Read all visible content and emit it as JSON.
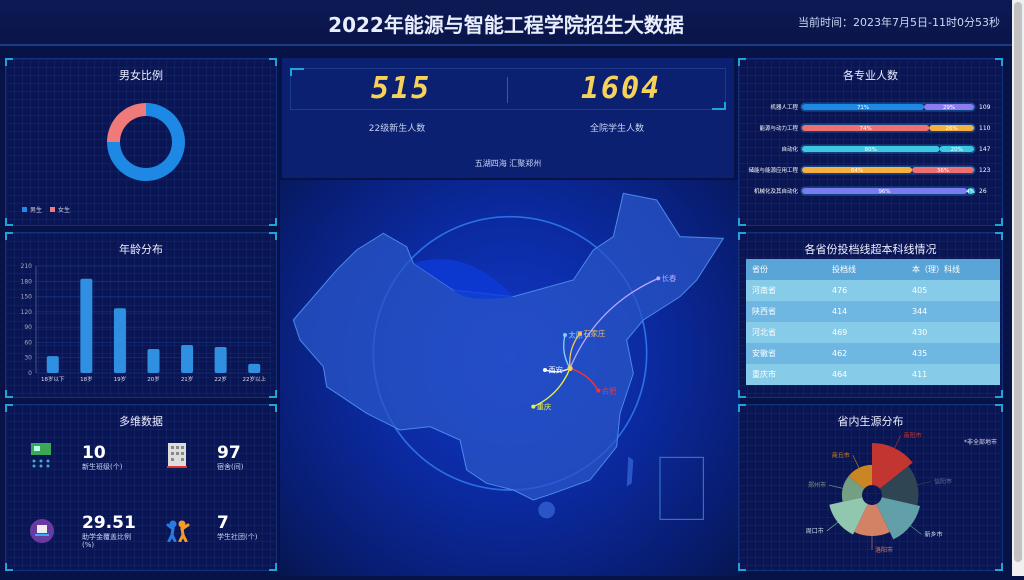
{
  "header": {
    "title": "2022年能源与智能工程学院招生大数据",
    "clock": "当前时间：2023年7月5日-11时0分53秒"
  },
  "gender": {
    "title": "男女比例",
    "legend": [
      "男生",
      "女生"
    ],
    "chart_data": {
      "type": "pie",
      "categories": [
        "男生",
        "女生"
      ],
      "values": [
        75,
        25
      ],
      "colors": [
        "#1e88e5",
        "#f07a7a"
      ],
      "legend": "bottom-left"
    }
  },
  "age": {
    "title": "年龄分布",
    "chart_data": {
      "type": "bar",
      "categories": [
        "18岁以下",
        "18岁",
        "19岁",
        "20岁",
        "21岁",
        "22岁",
        "22岁以上"
      ],
      "values": [
        33,
        185,
        127,
        47,
        55,
        51,
        18
      ],
      "ylim": [
        0,
        210
      ],
      "yticks": [
        0,
        30,
        60,
        90,
        120,
        150,
        180,
        210
      ],
      "color": "#2f8fe0"
    }
  },
  "multi": {
    "title": "多维数据",
    "items": [
      {
        "value": "10",
        "label": "新生班级(个)",
        "icon": "circuit-board-icon"
      },
      {
        "value": "97",
        "label": "宿舍(间)",
        "icon": "building-icon"
      },
      {
        "value": "29.51",
        "label": "助学金覆盖比例(%)",
        "icon": "laptop-icon"
      },
      {
        "value": "7",
        "label": "学生社团(个)",
        "icon": "people-cheering-icon"
      }
    ]
  },
  "center": {
    "freshmen": "515",
    "freshmen_label": "22级新生人数",
    "total": "1604",
    "total_label": "全院学生人数",
    "slogan": "五湖四海 汇聚郑州",
    "routes": [
      "长春",
      "太原",
      "石家庄",
      "西安",
      "合肥",
      "重庆"
    ],
    "route_colors": [
      "#b9a8ff",
      "#7fd0ff",
      "#f0c060",
      "#ffffff",
      "#ff3030",
      "#e8f040"
    ]
  },
  "majors": {
    "title": "各专业人数",
    "chart_data": {
      "type": "bar",
      "orientation": "horizontal-stacked",
      "rows": [
        {
          "name": "机器人工程",
          "p1": 71,
          "p2": 29,
          "total": 109,
          "colors": [
            "#1e88e5",
            "#8c7cf0"
          ]
        },
        {
          "name": "能源与动力工程",
          "p1": 74,
          "p2": 26,
          "total": 110,
          "colors": [
            "#f07070",
            "#f5b041"
          ]
        },
        {
          "name": "自动化",
          "p1": 80,
          "p2": 20,
          "total": 147,
          "colors": [
            "#3ec8e0",
            "#3ec8e0"
          ]
        },
        {
          "name": "储能与能源应用工程",
          "p1": 64,
          "p2": 36,
          "total": 123,
          "colors": [
            "#f5b041",
            "#f07070"
          ]
        },
        {
          "name": "机械化及其自动化",
          "p1": 96,
          "p2": 4,
          "total": 26,
          "colors": [
            "#7b7bf0",
            "#3ec8e0"
          ]
        }
      ]
    }
  },
  "scores": {
    "title": "各省份投档线超本科线情况",
    "headers": [
      "省份",
      "投档线",
      "本（理）科线"
    ],
    "rows": [
      [
        "河南省",
        "476",
        "405"
      ],
      [
        "陕西省",
        "414",
        "344"
      ],
      [
        "河北省",
        "469",
        "430"
      ],
      [
        "安徽省",
        "462",
        "435"
      ],
      [
        "重庆市",
        "464",
        "411"
      ]
    ]
  },
  "sources": {
    "title": "省内生源分布",
    "note": "*非全部地市",
    "chart_data": {
      "type": "pie",
      "variant": "rose",
      "categories": [
        "南阳市",
        "信阳市",
        "新乡市",
        "洛阳市",
        "周口市",
        "郑州市",
        "商丘市"
      ],
      "values": [
        95,
        85,
        90,
        75,
        80,
        55,
        55
      ],
      "colors": [
        "#c23531",
        "#2f4554",
        "#61a0a8",
        "#d48265",
        "#91c7ae",
        "#749f83",
        "#ca8622"
      ]
    }
  }
}
